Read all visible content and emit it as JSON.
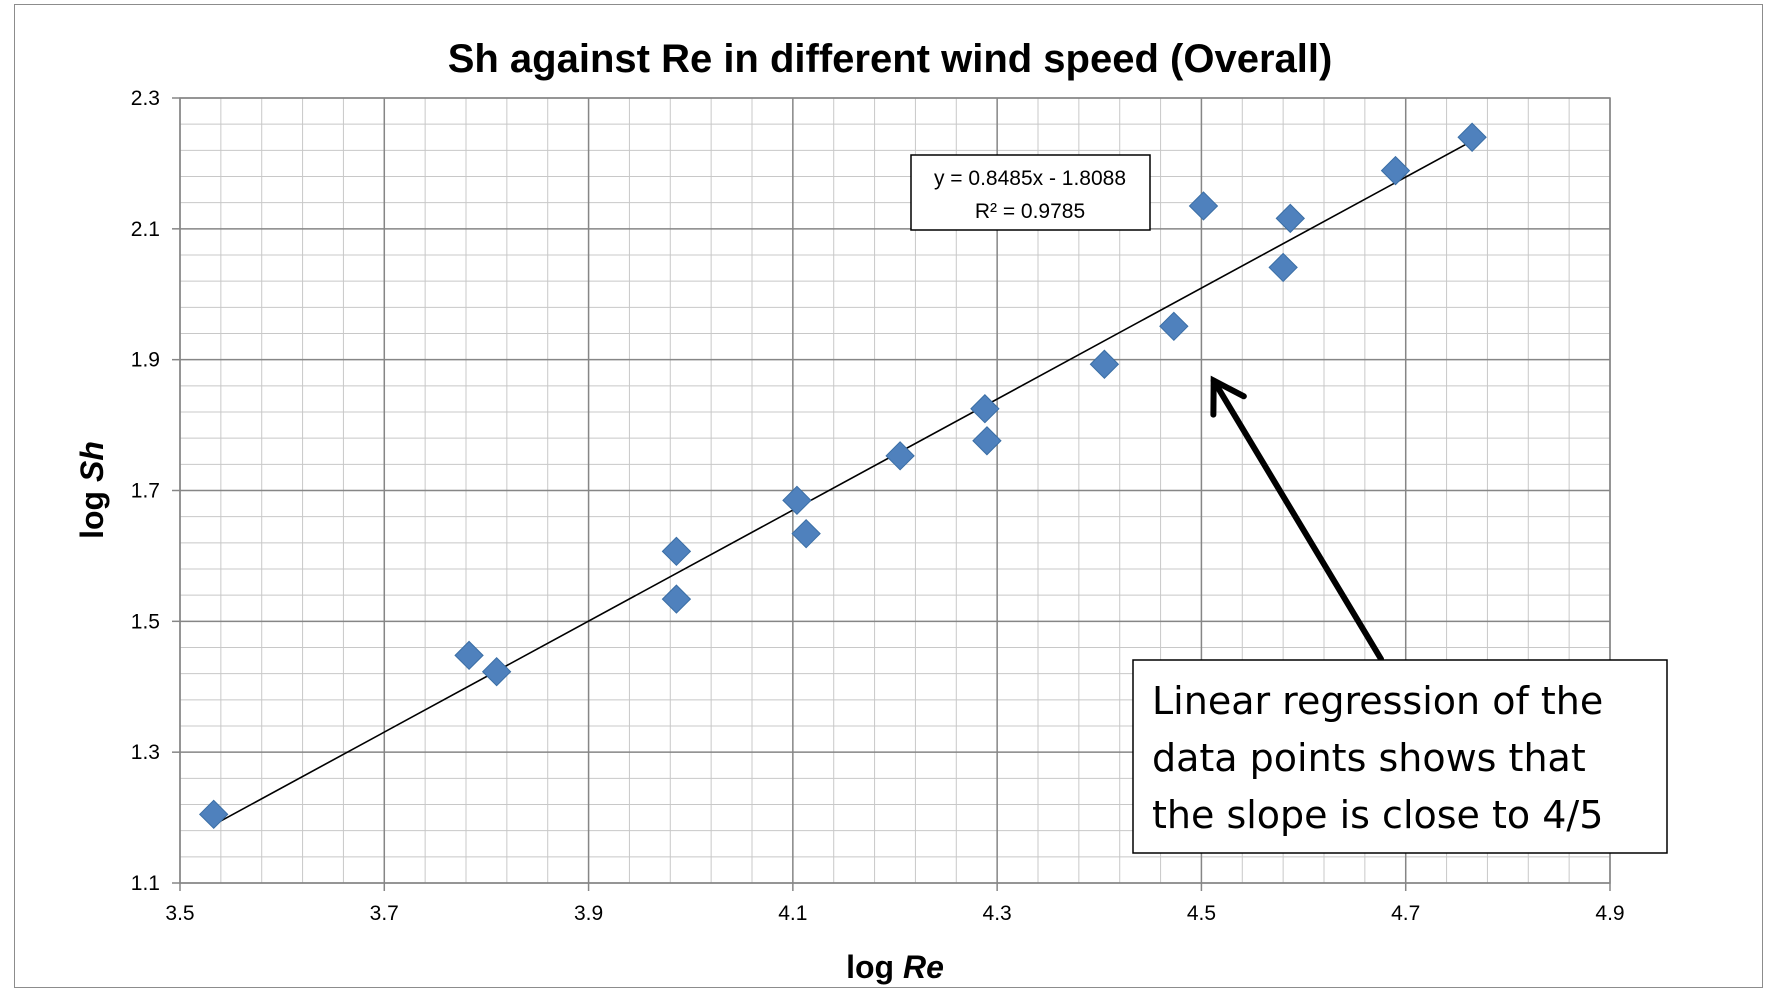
{
  "chart_data": {
    "type": "scatter",
    "title": "Sh against Re in different wind speed (Overall)",
    "xlabel_prefix": "log ",
    "xlabel_var": "Re",
    "ylabel_prefix": "log ",
    "ylabel_var": "Sh",
    "xlim": [
      3.5,
      4.9
    ],
    "ylim": [
      1.1,
      2.3
    ],
    "x_ticks": [
      "3.5",
      "3.7",
      "3.9",
      "4.1",
      "4.3",
      "4.5",
      "4.7",
      "4.9"
    ],
    "y_ticks": [
      "1.1",
      "1.3",
      "1.5",
      "1.7",
      "1.9",
      "2.1",
      "2.3"
    ],
    "major_x_step": 0.2,
    "major_y_step": 0.2,
    "minor_x_step": 0.04,
    "minor_y_step": 0.04,
    "grid": true,
    "marker": "diamond",
    "marker_color": "#4f81bd",
    "points": [
      {
        "x": 3.533,
        "y": 1.205
      },
      {
        "x": 3.783,
        "y": 1.448
      },
      {
        "x": 3.81,
        "y": 1.423
      },
      {
        "x": 3.986,
        "y": 1.607
      },
      {
        "x": 3.986,
        "y": 1.534
      },
      {
        "x": 4.104,
        "y": 1.685
      },
      {
        "x": 4.113,
        "y": 1.634
      },
      {
        "x": 4.205,
        "y": 1.753
      },
      {
        "x": 4.288,
        "y": 1.825
      },
      {
        "x": 4.29,
        "y": 1.776
      },
      {
        "x": 4.405,
        "y": 1.893
      },
      {
        "x": 4.473,
        "y": 1.951
      },
      {
        "x": 4.502,
        "y": 2.135
      },
      {
        "x": 4.58,
        "y": 2.041
      },
      {
        "x": 4.587,
        "y": 2.116
      },
      {
        "x": 4.69,
        "y": 2.189
      },
      {
        "x": 4.765,
        "y": 2.24
      }
    ],
    "trendline": {
      "slope": 0.8485,
      "intercept": -1.8088,
      "x_range": [
        3.533,
        4.765
      ],
      "equation_text": "y = 0.8485x - 1.8088",
      "r2_text": "R² = 0.9785"
    },
    "annotation": {
      "lines": [
        "Linear regression of the",
        "data points shows that",
        "the slope is close to 4/5"
      ],
      "arrow_tip": {
        "x": 4.512,
        "y": 1.868
      }
    }
  }
}
